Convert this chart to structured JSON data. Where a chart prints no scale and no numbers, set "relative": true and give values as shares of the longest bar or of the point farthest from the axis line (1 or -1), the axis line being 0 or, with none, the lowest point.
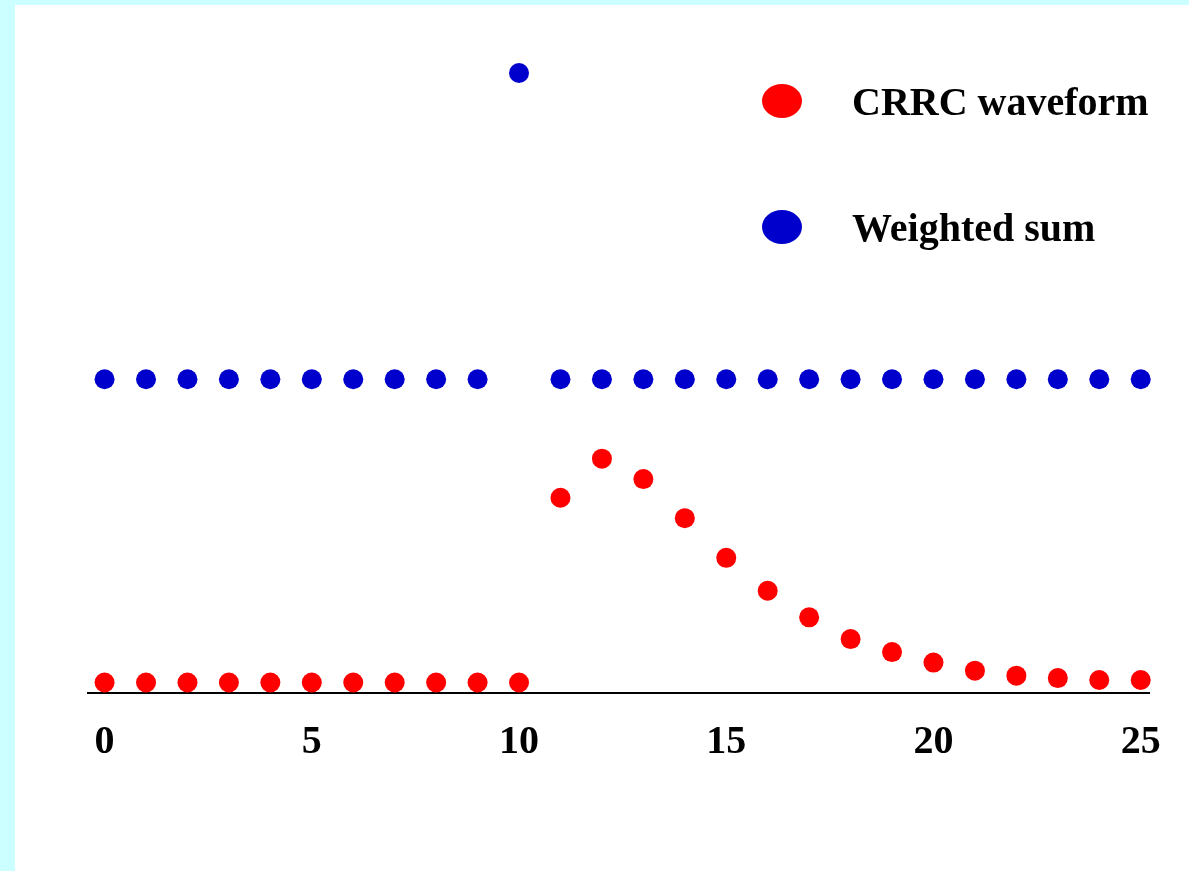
{
  "chart_data": {
    "type": "scatter",
    "relative": true,
    "legend": "top right",
    "marker": "circle",
    "x": [
      0,
      1,
      2,
      3,
      4,
      5,
      6,
      7,
      8,
      9,
      10,
      11,
      12,
      13,
      14,
      15,
      16,
      17,
      18,
      19,
      20,
      21,
      22,
      23,
      24,
      25
    ],
    "xlim": [
      -0.4,
      25.2
    ],
    "xticks": [
      0,
      5,
      10,
      15,
      20,
      25
    ],
    "tick_labels": "x",
    "series": [
      {
        "name": "CRRC waveform",
        "color": "#ff0000",
        "values": [
          0.017,
          0.017,
          0.017,
          0.017,
          0.017,
          0.017,
          0.017,
          0.017,
          0.017,
          0.017,
          0.017,
          0.315,
          0.378,
          0.345,
          0.282,
          0.218,
          0.165,
          0.122,
          0.087,
          0.066,
          0.049,
          0.036,
          0.028,
          0.024,
          0.021,
          0.021
        ]
      },
      {
        "name": "Weighted sum",
        "color": "#0000cc",
        "values": [
          0.506,
          0.506,
          0.506,
          0.506,
          0.506,
          0.506,
          0.506,
          0.506,
          0.506,
          0.506,
          1,
          0.506,
          0.506,
          0.506,
          0.506,
          0.506,
          0.506,
          0.506,
          0.506,
          0.506,
          0.506,
          0.506,
          0.506,
          0.506,
          0.506,
          0.506
        ]
      }
    ]
  }
}
